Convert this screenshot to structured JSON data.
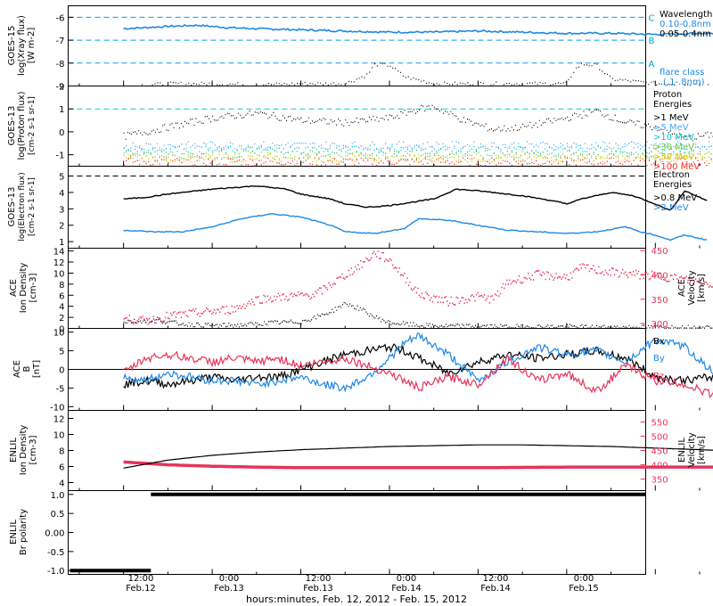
{
  "x_axis": {
    "label": "hours:minutes, Feb. 12, 2012 - Feb. 15, 2012",
    "ticks": [
      {
        "time": "12:00",
        "date": "Feb.12"
      },
      {
        "time": "0:00",
        "date": "Feb.13"
      },
      {
        "time": "12:00",
        "date": "Feb.13"
      },
      {
        "time": "0:00",
        "date": "Feb.14"
      },
      {
        "time": "12:00",
        "date": "Feb.14"
      },
      {
        "time": "0:00",
        "date": "Feb.15"
      }
    ]
  },
  "colors": {
    "black": "#000000",
    "blue": "#1e88e5",
    "red": "#e8335a",
    "cyan": "#00c8e0",
    "light_blue": "#4aa8ff",
    "teal": "#00c8c8",
    "green": "#6fc73a",
    "yellow": "#e0c000",
    "orange": "#ff8a00",
    "scarlet": "#ff3020"
  },
  "chart_data": [
    {
      "type": "line",
      "panel": "goes15-xray",
      "ylabel": [
        "GOES-15",
        "log(Xray flux)",
        "[W m-2]"
      ],
      "ylim": [
        -9,
        -5.5
      ],
      "yticks": [
        "-6",
        "-7",
        "-8",
        "-9"
      ],
      "flare_class_lines": [
        {
          "label": "C",
          "value": -6
        },
        {
          "label": "B",
          "value": -7
        },
        {
          "label": "A",
          "value": -8
        }
      ],
      "legend_title": "Wavelength",
      "legend_footer": [
        "flare class",
        "(.1-.8nm)"
      ],
      "series": [
        {
          "name": "0.10-0.8nm",
          "color": "#1e88e5",
          "x_hours": [
            0,
            3,
            6,
            10,
            14,
            18,
            24,
            30,
            36,
            42,
            48,
            54,
            60,
            66,
            72,
            78,
            80
          ],
          "y": [
            -6.5,
            -6.45,
            -6.4,
            -6.35,
            -6.45,
            -6.5,
            -6.55,
            -6.6,
            -6.65,
            -6.65,
            -6.6,
            -6.65,
            -6.7,
            -6.7,
            -6.75,
            -6.7,
            -6.7
          ]
        },
        {
          "name": "0.05-0.4nm",
          "color": "#000000",
          "x_hours": [
            0,
            6,
            12,
            18,
            24,
            30,
            33,
            34,
            36,
            38,
            42,
            48,
            54,
            60,
            61,
            62,
            64,
            66,
            72,
            78,
            80
          ],
          "y": [
            -9,
            -8.9,
            -8.9,
            -8.95,
            -8.9,
            -8.9,
            -8.5,
            -8.05,
            -8.1,
            -8.6,
            -8.9,
            -8.9,
            -8.9,
            -8.9,
            -8.3,
            -8.05,
            -8.1,
            -8.7,
            -8.9,
            -8.95,
            -8.95
          ]
        }
      ]
    },
    {
      "type": "scatter",
      "panel": "goes13-proton",
      "ylabel": [
        "GOES-13",
        "log(Proton flux)",
        "[cm-2 s-1 sr-1]"
      ],
      "ylim": [
        -1.5,
        2
      ],
      "yticks": [
        "2",
        "1",
        "0",
        "-1"
      ],
      "threshold": 1,
      "legend_title": [
        "Proton",
        "Energies"
      ],
      "series": [
        {
          "name": ">1 MeV",
          "color": "#000000",
          "x_hours": [
            0,
            6,
            12,
            18,
            24,
            30,
            36,
            40,
            42,
            46,
            50,
            54,
            60,
            64,
            68,
            72,
            76,
            80
          ],
          "y": [
            -0.2,
            0.2,
            0.6,
            0.8,
            0.5,
            0.4,
            0.6,
            1.0,
            1.1,
            0.5,
            0.1,
            0.2,
            0.6,
            0.9,
            0.4,
            0.2,
            -0.3,
            -0.1
          ]
        },
        {
          "name": ">5 MeV",
          "color": "#4aa8ff",
          "level": -0.6
        },
        {
          "name": ">10 MeV",
          "color": "#00c8c8",
          "level": -0.8
        },
        {
          "name": ">30 MeV",
          "color": "#6fc73a",
          "level": -1.0
        },
        {
          "name": ">50 MeV",
          "color": "#e0c000",
          "level": -1.15
        },
        {
          "name": ">100 MeV",
          "color": "#ff3020",
          "level": -1.3
        }
      ]
    },
    {
      "type": "line",
      "panel": "goes13-electron",
      "ylabel": [
        "GOES-13",
        "log(Electron flux)",
        "[cm-2 s-1 sr-1]"
      ],
      "ylim": [
        0.6,
        5.6
      ],
      "yticks": [
        "5",
        "4",
        "3",
        "2",
        "1"
      ],
      "threshold": 5,
      "legend_title": [
        "Electron",
        "Energies"
      ],
      "series": [
        {
          "name": ">0.8 MeV",
          "color": "#000000",
          "x_hours": [
            0,
            3,
            6,
            12,
            18,
            22,
            24,
            28,
            30,
            33,
            36,
            42,
            45,
            48,
            54,
            58,
            60,
            62,
            66,
            69,
            72,
            74,
            76,
            79
          ],
          "y": [
            3.6,
            3.7,
            3.9,
            4.2,
            4.4,
            4.2,
            3.9,
            3.6,
            3.3,
            3.1,
            3.2,
            3.6,
            4.2,
            4.1,
            3.8,
            3.5,
            3.3,
            3.6,
            4.0,
            3.8,
            3.3,
            2.9,
            4.1,
            3.5
          ]
        },
        {
          "name": ">2 MeV",
          "color": "#1e88e5",
          "x_hours": [
            0,
            4,
            8,
            12,
            16,
            20,
            24,
            28,
            30,
            34,
            38,
            40,
            44,
            48,
            52,
            56,
            60,
            64,
            68,
            70,
            72,
            74,
            76,
            79
          ],
          "y": [
            1.7,
            1.6,
            1.6,
            1.9,
            2.4,
            2.7,
            2.5,
            2.0,
            1.6,
            1.5,
            1.8,
            2.4,
            2.3,
            2.0,
            1.7,
            1.6,
            1.5,
            1.6,
            1.9,
            1.6,
            1.4,
            1.1,
            1.4,
            1.1
          ]
        }
      ]
    },
    {
      "type": "scatter",
      "panel": "ace-plasma",
      "ylabel": [
        "ACE",
        "Ion Density",
        "[cm-3]"
      ],
      "ylabel_right": [
        "ACE",
        "Velocity",
        "[km/s]"
      ],
      "ylim": [
        0,
        14.5
      ],
      "yticks": [
        "14",
        "12",
        "10",
        "8",
        "6",
        "4",
        "2",
        "0"
      ],
      "ylim_right": [
        290,
        455
      ],
      "yticks_right": [
        "450",
        "400",
        "350",
        "300"
      ],
      "series": [
        {
          "name": "density",
          "color": "#000000",
          "x_hours": [
            0,
            4,
            8,
            12,
            16,
            20,
            24,
            26,
            28,
            30,
            32,
            34,
            36,
            38,
            40,
            44,
            48,
            52,
            56,
            60,
            64,
            68,
            72,
            76,
            80
          ],
          "y": [
            1.2,
            1.5,
            0.8,
            0.5,
            0.6,
            1.0,
            1.2,
            2.0,
            3.0,
            4.5,
            3.5,
            2.0,
            1.0,
            0.8,
            0.5,
            0.4,
            0.4,
            0.3,
            0.3,
            0.3,
            0.2,
            0.2,
            0.2,
            0.2,
            0.2
          ]
        },
        {
          "name": "velocity",
          "color": "#e8335a",
          "x_hours": [
            0,
            3,
            6,
            9,
            12,
            15,
            18,
            22,
            26,
            28,
            30,
            32,
            34,
            36,
            38,
            40,
            44,
            48,
            50,
            52,
            56,
            60,
            62,
            66,
            70,
            74,
            78,
            80
          ],
          "y": [
            310,
            305,
            315,
            320,
            325,
            330,
            350,
            355,
            360,
            380,
            400,
            420,
            445,
            430,
            395,
            360,
            345,
            355,
            350,
            385,
            400,
            395,
            415,
            405,
            400,
            395,
            385,
            380
          ]
        }
      ]
    },
    {
      "type": "line",
      "panel": "ace-magnetic",
      "ylabel": [
        "ACE",
        "B",
        "[nT]"
      ],
      "ylim": [
        -11,
        11
      ],
      "yticks": [
        "10",
        "5",
        "0",
        "-5",
        "-10"
      ],
      "series": [
        {
          "name": "Bx",
          "color": "#000000",
          "x_hours": [
            0,
            3,
            6,
            9,
            12,
            15,
            18,
            21,
            24,
            27,
            30,
            33,
            36,
            38,
            40,
            44,
            48,
            52,
            56,
            60,
            64,
            68,
            72,
            76,
            80
          ],
          "y": [
            -4,
            -3,
            -4,
            -3,
            -2,
            -3,
            -2,
            -2,
            0,
            2,
            4,
            5,
            6,
            5,
            3,
            -1,
            2,
            4,
            3,
            4,
            5,
            3,
            -2,
            -3,
            -2
          ]
        },
        {
          "name": "By",
          "color": "#1e88e5",
          "x_hours": [
            0,
            3,
            6,
            9,
            12,
            15,
            18,
            21,
            24,
            27,
            30,
            33,
            36,
            38,
            40,
            44,
            48,
            52,
            56,
            60,
            64,
            68,
            72,
            76,
            80
          ],
          "y": [
            -2,
            -3,
            -1,
            -2,
            -3,
            -3,
            -4,
            -3,
            -2,
            -4,
            -5,
            -2,
            3,
            7,
            9,
            4,
            -3,
            2,
            6,
            4,
            5,
            2,
            8,
            6,
            -1
          ]
        },
        {
          "name": "Bz",
          "color": "#e8335a",
          "x_hours": [
            0,
            3,
            6,
            9,
            12,
            15,
            18,
            21,
            24,
            27,
            30,
            33,
            36,
            38,
            40,
            44,
            48,
            52,
            56,
            60,
            64,
            68,
            72,
            76,
            80
          ],
          "y": [
            -1,
            3,
            4,
            3,
            2,
            3,
            2,
            3,
            1,
            2,
            3,
            1,
            -1,
            -3,
            -5,
            -2,
            -4,
            3,
            -3,
            -1,
            -6,
            1,
            -3,
            -4,
            -7
          ]
        }
      ]
    },
    {
      "type": "line",
      "panel": "enlil-plasma",
      "ylabel": [
        "ENLIL",
        "Ion Density",
        "[cm-3]"
      ],
      "ylabel_right": [
        "ENLIL",
        "Velocity",
        "[km/s]"
      ],
      "ylim": [
        3,
        13
      ],
      "yticks": [
        "12",
        "10",
        "8",
        "6",
        "4"
      ],
      "ylim_right": [
        310,
        590
      ],
      "yticks_right": [
        "550",
        "500",
        "450",
        "400",
        "350"
      ],
      "series": [
        {
          "name": "density",
          "color": "#000000",
          "x_hours": [
            0,
            6,
            12,
            18,
            24,
            30,
            36,
            42,
            48,
            54,
            60,
            66,
            72,
            78,
            84
          ],
          "y": [
            5.8,
            6.8,
            7.4,
            7.8,
            8.1,
            8.3,
            8.5,
            8.6,
            8.7,
            8.7,
            8.6,
            8.5,
            8.3,
            8.1,
            7.9
          ]
        },
        {
          "name": "velocity",
          "color": "#e8335a",
          "x_hours": [
            0,
            6,
            12,
            18,
            24,
            30,
            36,
            42,
            48,
            54,
            60,
            66,
            72,
            78,
            84
          ],
          "y": [
            410,
            400,
            395,
            392,
            390,
            390,
            390,
            390,
            390,
            391,
            392,
            392,
            392,
            392,
            392
          ]
        }
      ]
    },
    {
      "type": "line",
      "panel": "enlil-polarity",
      "ylabel": [
        "ENLIL",
        "Br polarity"
      ],
      "ylim": [
        -1.1,
        1.1
      ],
      "yticks": [
        "1.0",
        "0.5",
        "0.00",
        "-0.5",
        "-1.0"
      ],
      "series": [
        {
          "name": "polarity",
          "color": "#000000",
          "x_hours": [
            -7.5,
            3.7,
            3.7,
            84
          ],
          "y": [
            -1,
            -1,
            1,
            1
          ]
        }
      ]
    }
  ],
  "legends": {
    "xray": {
      "title": "Wavelength",
      "s1": "0.10-0.8nm",
      "s2": "0.05-0.4nm",
      "foot1": "flare class",
      "foot2": "(.1-.8nm)"
    },
    "proton": {
      "t1": "Proton",
      "t2": "Energies",
      "items": [
        ">1 MeV",
        ">5 MeV",
        ">10 MeV",
        ">30 MeV",
        ">50 MeV",
        ">100 MeV"
      ]
    },
    "electron": {
      "t1": "Electron",
      "t2": "Energies",
      "items": [
        ">0.8 MeV",
        ">2 MeV"
      ]
    },
    "mag": {
      "items": [
        "Bx",
        "By",
        "Bz"
      ]
    }
  }
}
